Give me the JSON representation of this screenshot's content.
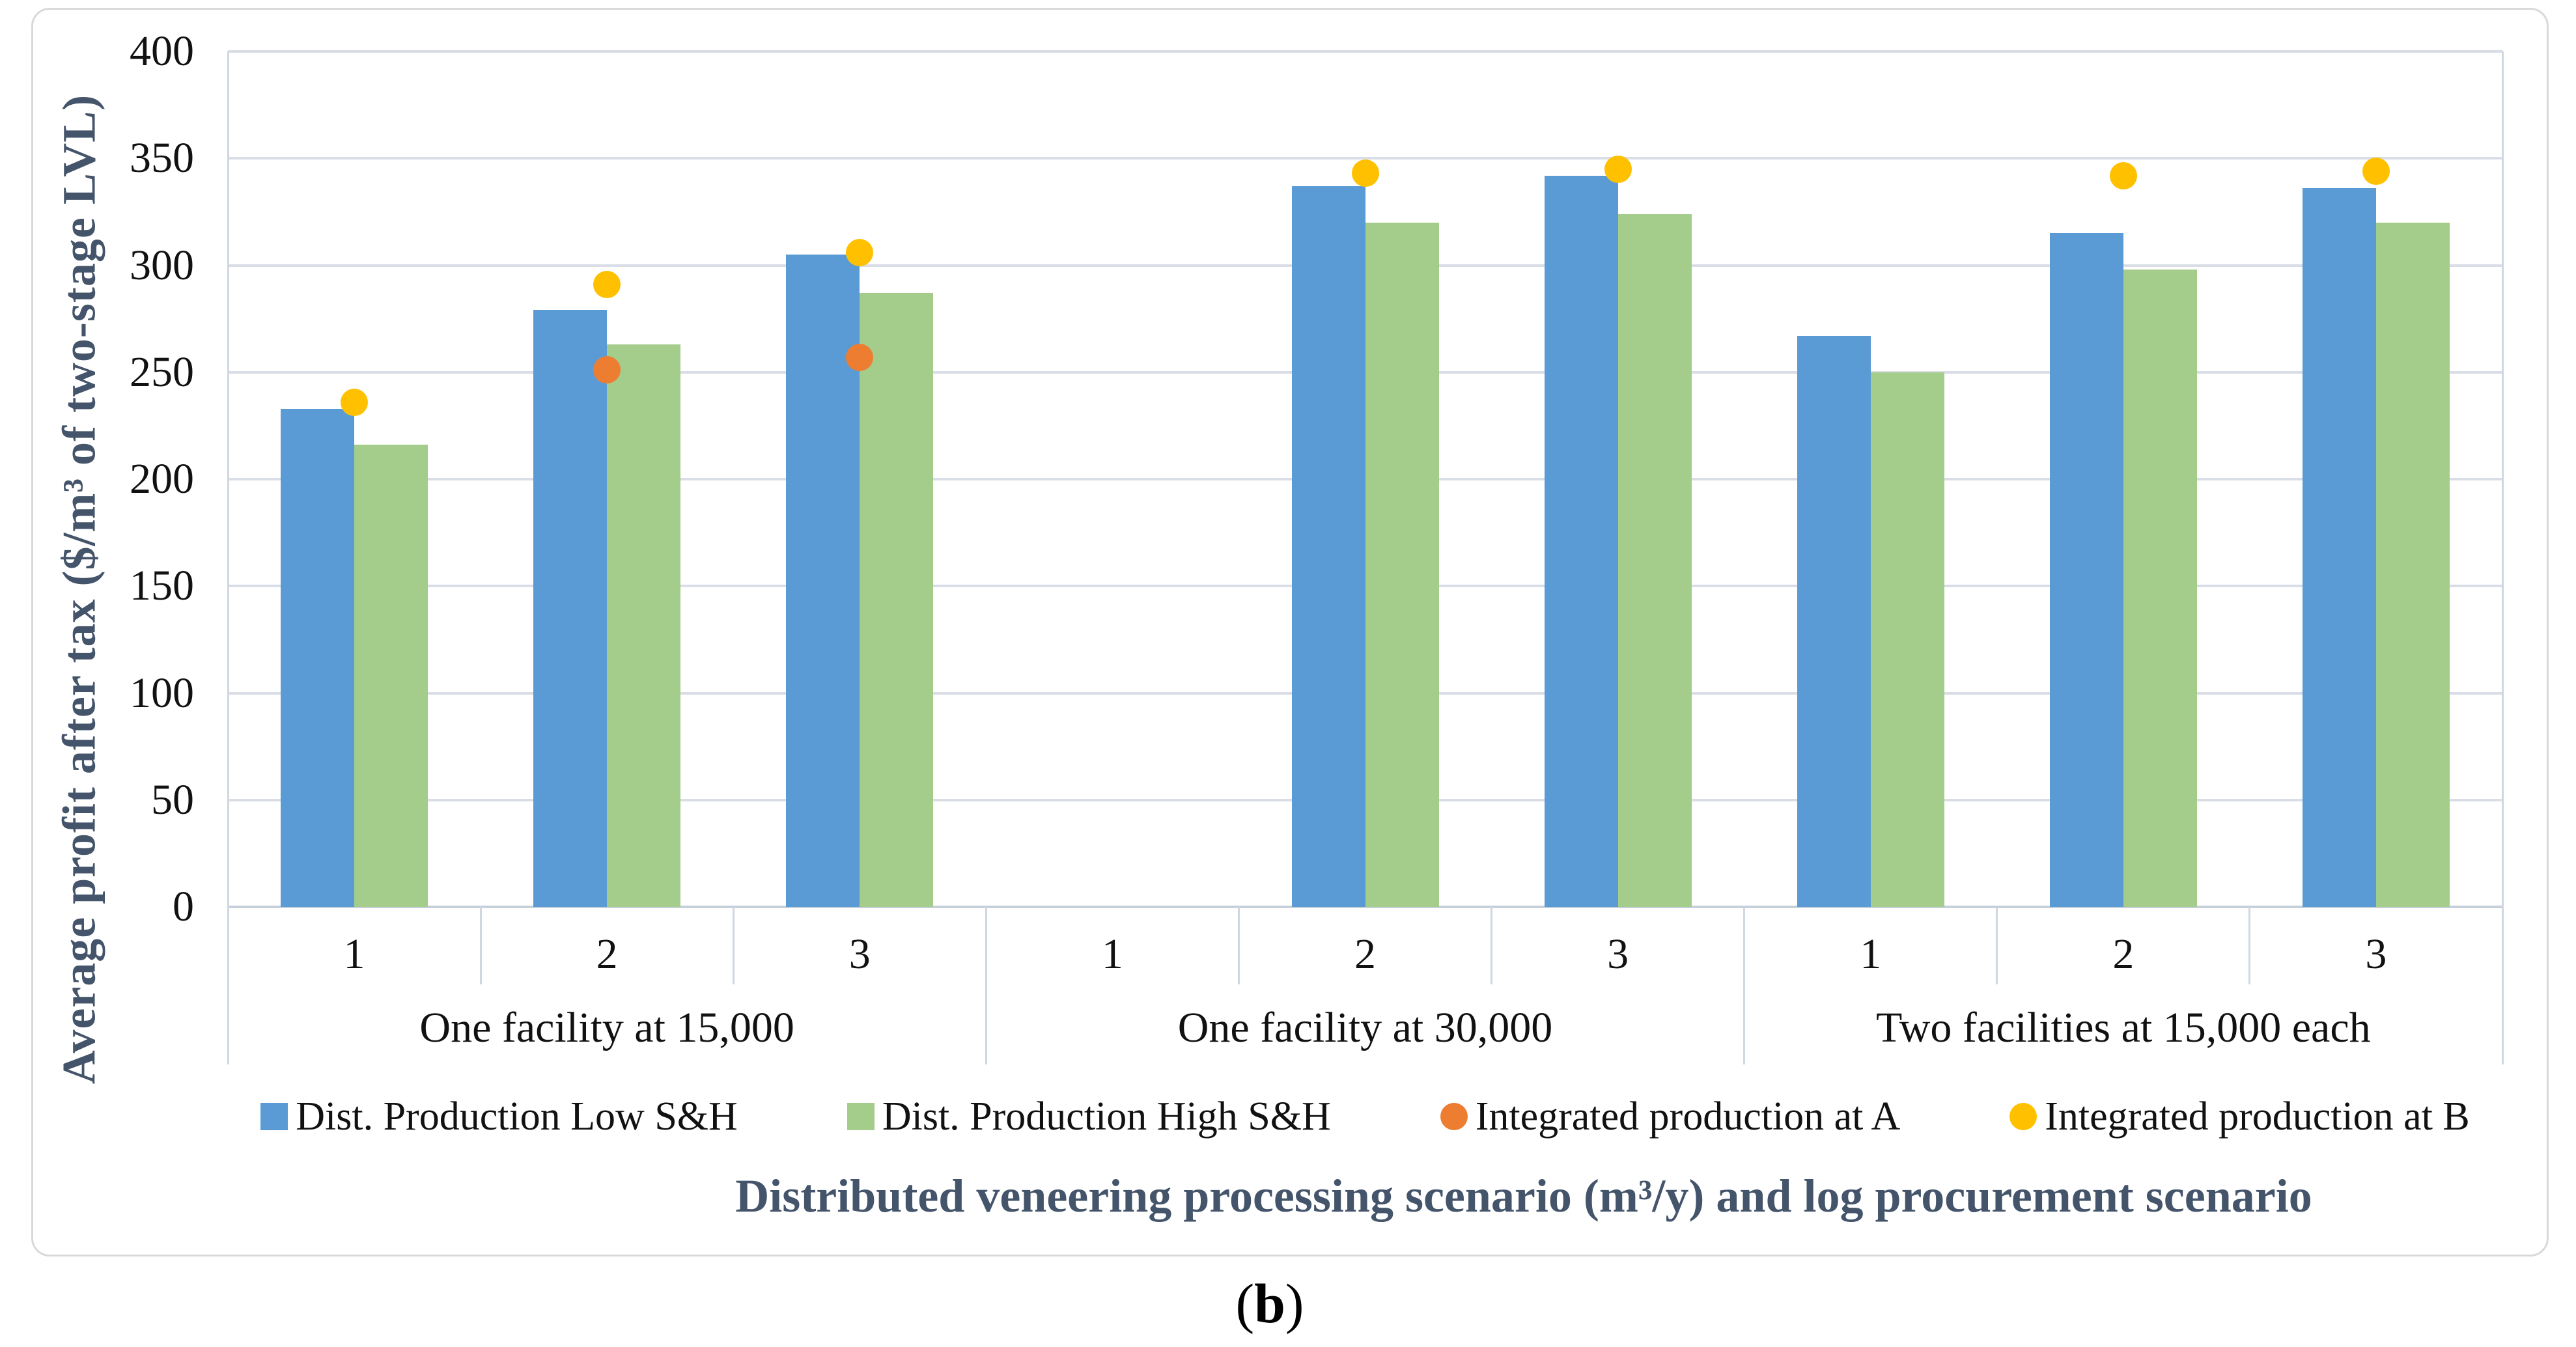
{
  "figure": {
    "caption": {
      "open": "(",
      "letter": "b",
      "close": ")"
    }
  },
  "chart_data": {
    "type": "bar",
    "title": "",
    "ylabel": "Average profit after tax ($/m³ of two-stage LVL)",
    "xlabel": "Distributed veneering processing scenario (m³/y) and log procurement scenario",
    "ylim": [
      0,
      400
    ],
    "yticks": [
      0,
      50,
      100,
      150,
      200,
      250,
      300,
      350,
      400
    ],
    "grid": true,
    "legend_position": "bottom",
    "series": [
      {
        "name": "Dist. Production Low S&H",
        "type": "bar",
        "color": "#5B9BD5",
        "key": "low"
      },
      {
        "name": "Dist. Production High S&H",
        "type": "bar",
        "color": "#A4CC8A",
        "key": "high"
      },
      {
        "name": "Integrated production at A",
        "type": "point",
        "color": "#ED7D31",
        "key": "intA"
      },
      {
        "name": "Integrated production at B",
        "type": "point",
        "color": "#FFC000",
        "key": "intB"
      }
    ],
    "groups": [
      {
        "label": "One facility at 15,000",
        "scenarios": [
          {
            "procurement": "1",
            "low": 233,
            "high": 216,
            "intA": null,
            "intB": 236
          },
          {
            "procurement": "2",
            "low": 279,
            "high": 263,
            "intA": 251,
            "intB": 291
          },
          {
            "procurement": "3",
            "low": 305,
            "high": 287,
            "intA": 257,
            "intB": 306
          }
        ]
      },
      {
        "label": "One facility at 30,000",
        "scenarios": [
          {
            "procurement": "1",
            "low": null,
            "high": null,
            "intA": null,
            "intB": null
          },
          {
            "procurement": "2",
            "low": 337,
            "high": 320,
            "intA": null,
            "intB": 343
          },
          {
            "procurement": "3",
            "low": 342,
            "high": 324,
            "intA": null,
            "intB": 345
          }
        ]
      },
      {
        "label": "Two facilities at 15,000 each",
        "scenarios": [
          {
            "procurement": "1",
            "low": 267,
            "high": 250,
            "intA": null,
            "intB": null
          },
          {
            "procurement": "2",
            "low": 315,
            "high": 298,
            "intA": null,
            "intB": 342
          },
          {
            "procurement": "3",
            "low": 336,
            "high": 320,
            "intA": null,
            "intB": 344
          }
        ]
      }
    ]
  }
}
